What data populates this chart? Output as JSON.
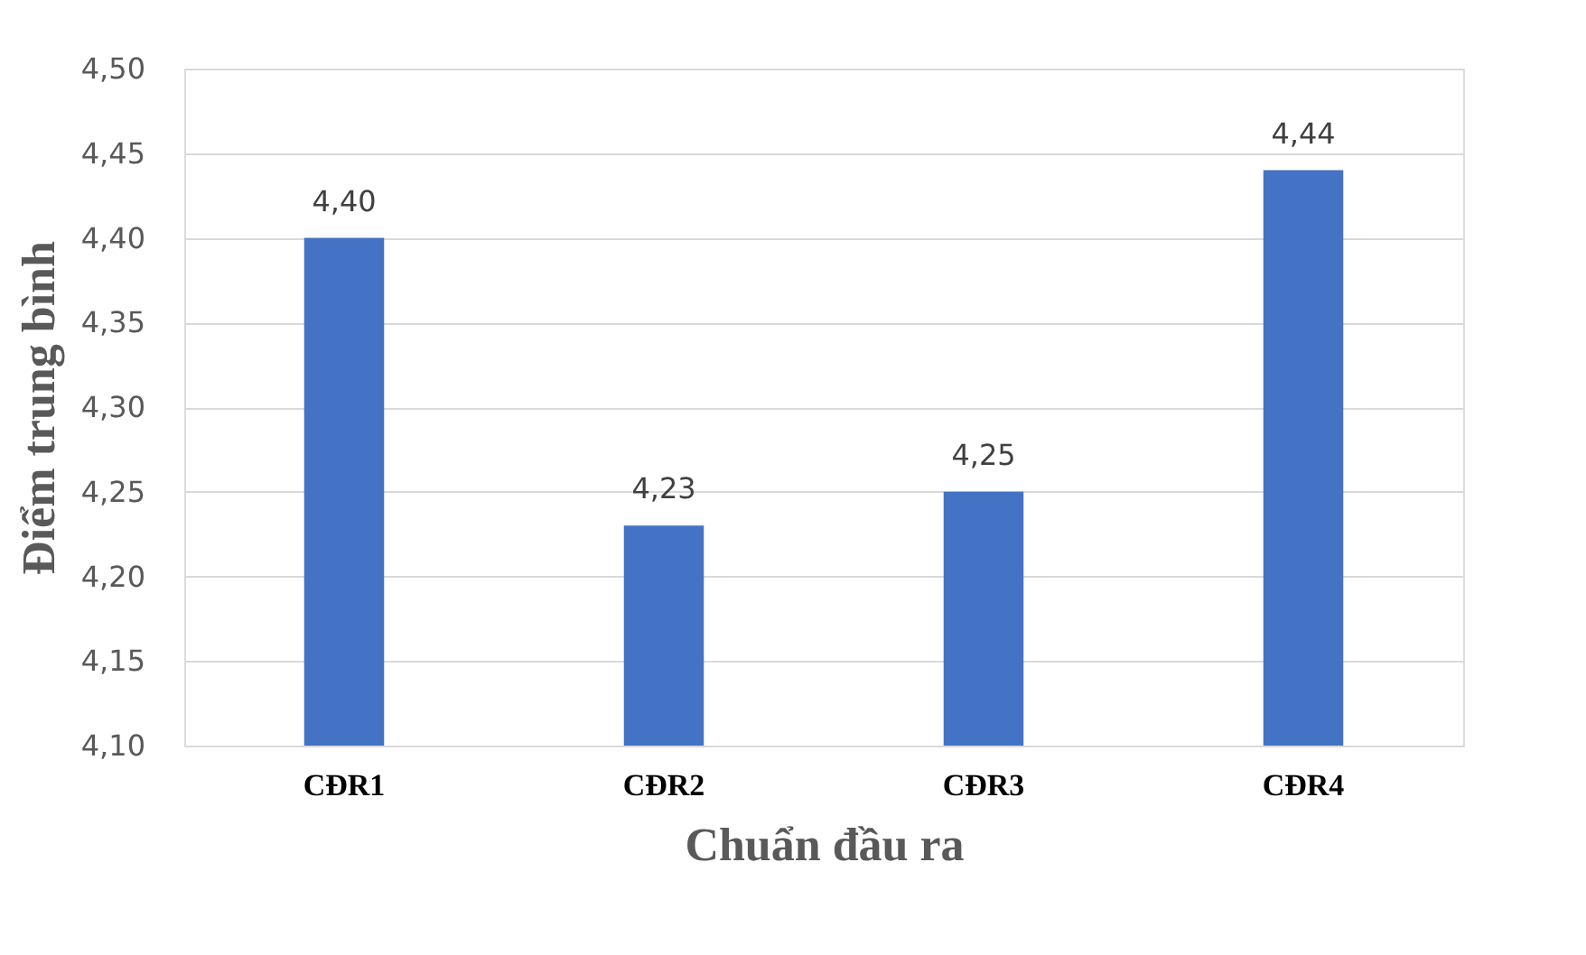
{
  "chart_data": {
    "type": "bar",
    "xlabel": "Chuẩn đầu ra",
    "ylabel": "Điểm trung bình",
    "categories": [
      "CĐR1",
      "CĐR2",
      "CĐR3",
      "CĐR4"
    ],
    "values": [
      4.4,
      4.23,
      4.25,
      4.44
    ],
    "value_labels": [
      "4,40",
      "4,23",
      "4,25",
      "4,44"
    ],
    "color": "#4472c4",
    "ylim": [
      4.1,
      4.5
    ],
    "yticks": [
      {
        "value": 4.1,
        "label": "4,10"
      },
      {
        "value": 4.15,
        "label": "4,15"
      },
      {
        "value": 4.2,
        "label": "4,20"
      },
      {
        "value": 4.25,
        "label": "4,25"
      },
      {
        "value": 4.3,
        "label": "4,30"
      },
      {
        "value": 4.35,
        "label": "4,35"
      },
      {
        "value": 4.4,
        "label": "4,40"
      },
      {
        "value": 4.45,
        "label": "4,45"
      },
      {
        "value": 4.5,
        "label": "4,50"
      }
    ],
    "grid": "y"
  }
}
